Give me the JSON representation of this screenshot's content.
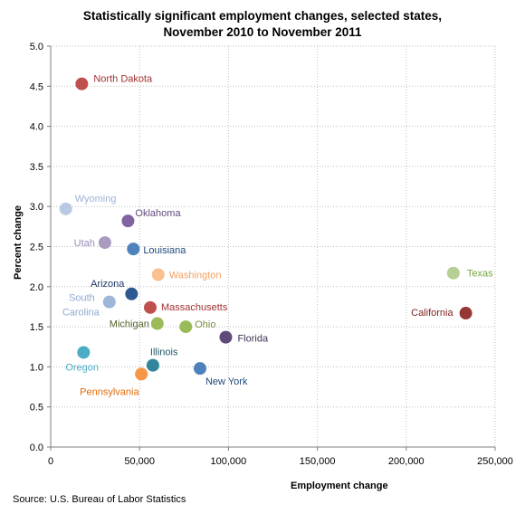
{
  "chart_data": {
    "type": "scatter",
    "title_line1": "Statistically significant employment changes, selected states,",
    "title_line2": "November 2010 to November 2011",
    "xlabel": "Employment change",
    "ylabel": "Percent change",
    "xlim": [
      0,
      250000
    ],
    "ylim": [
      0,
      5.0
    ],
    "x_ticks": [
      "0",
      "50,000",
      "100,000",
      "150,000",
      "200,000",
      "250,000"
    ],
    "y_ticks": [
      "0.0",
      "0.5",
      "1.0",
      "1.5",
      "2.0",
      "2.5",
      "3.0",
      "3.5",
      "4.0",
      "4.5",
      "5.0"
    ],
    "grid": true,
    "source": "Source: U.S. Bureau of Labor Statistics",
    "points": [
      {
        "label": "North Dakota",
        "x": 17500,
        "y": 4.53,
        "color": "#c0504d",
        "label_color": "#a0322f"
      },
      {
        "label": "Wyoming",
        "x": 8500,
        "y": 2.97,
        "color": "#b9c9e3",
        "label_color": "#9fb3d6"
      },
      {
        "label": "Oklahoma",
        "x": 43500,
        "y": 2.82,
        "color": "#8064a2",
        "label_color": "#604a7b"
      },
      {
        "label": "Utah",
        "x": 30500,
        "y": 2.55,
        "color": "#a99bc0",
        "label_color": "#9b8bb6"
      },
      {
        "label": "Louisiana",
        "x": 46500,
        "y": 2.47,
        "color": "#4f81bd",
        "label_color": "#1f497d"
      },
      {
        "label": "Washington",
        "x": 60500,
        "y": 2.15,
        "color": "#fac08f",
        "label_color": "#f5a05e"
      },
      {
        "label": "Texas",
        "x": 226500,
        "y": 2.17,
        "color": "#b5cf95",
        "label_color": "#77a540"
      },
      {
        "label": "Arizona",
        "x": 45500,
        "y": 1.91,
        "color": "#2c5791",
        "label_color": "#1f3864"
      },
      {
        "label": "South Carolina",
        "x": 33000,
        "y": 1.81,
        "color": "#9db6d9",
        "label_color": "#8fa9cf"
      },
      {
        "label": "Massachusetts",
        "x": 56000,
        "y": 1.74,
        "color": "#c0504d",
        "label_color": "#a0322f"
      },
      {
        "label": "California",
        "x": 233500,
        "y": 1.67,
        "color": "#953734",
        "label_color": "#7f2422"
      },
      {
        "label": "Michigan",
        "x": 60000,
        "y": 1.54,
        "color": "#9bbb59",
        "label_color": "#4f6228"
      },
      {
        "label": "Ohio",
        "x": 76000,
        "y": 1.5,
        "color": "#9bbb59",
        "label_color": "#76923c"
      },
      {
        "label": "Florida",
        "x": 98500,
        "y": 1.37,
        "color": "#604a7b",
        "label_color": "#403152"
      },
      {
        "label": "Oregon",
        "x": 18500,
        "y": 1.18,
        "color": "#4bacc6",
        "label_color": "#4bacc6"
      },
      {
        "label": "Illinois",
        "x": 57500,
        "y": 1.02,
        "color": "#31859c",
        "label_color": "#215968"
      },
      {
        "label": "New York",
        "x": 84000,
        "y": 0.98,
        "color": "#4f81bd",
        "label_color": "#1f497d"
      },
      {
        "label": "Pennsylvania",
        "x": 51000,
        "y": 0.91,
        "color": "#f79646",
        "label_color": "#e36c09"
      }
    ]
  }
}
